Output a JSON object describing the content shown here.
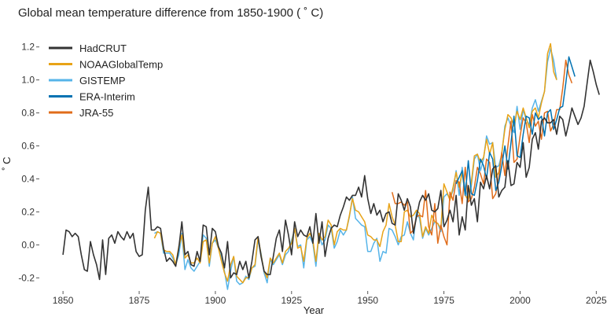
{
  "chart_data": {
    "type": "line",
    "title": "Global mean temperature difference from 1850-1900 ( ˚ C)",
    "xlabel": "Year",
    "ylabel": "˚ C",
    "xlim": [
      1843,
      2028
    ],
    "ylim": [
      -0.27,
      1.27
    ],
    "x_ticks": [
      1850,
      1875,
      1900,
      1925,
      1950,
      1975,
      2000,
      2025
    ],
    "y_ticks": [
      -0.2,
      0.0,
      0.2,
      0.4,
      0.6,
      0.8,
      1.0,
      1.2
    ],
    "x_tick_labels": [
      "1850",
      "1875",
      "1900",
      "1925",
      "1950",
      "1975",
      "2000",
      "2025"
    ],
    "y_tick_labels": [
      "-0.2",
      "0.0",
      "0.2",
      "0.4",
      "0.6",
      "0.8",
      "1.0",
      "1.2"
    ],
    "grid": false,
    "legend_position": "top-left",
    "series": [
      {
        "name": "HadCRUT",
        "color": "#333333",
        "start": 1850,
        "values": [
          -0.06,
          0.09,
          0.08,
          0.05,
          0.07,
          0.05,
          -0.06,
          -0.15,
          -0.16,
          0.02,
          -0.06,
          -0.12,
          -0.21,
          0.03,
          -0.18,
          0.04,
          0.06,
          0.01,
          0.08,
          0.05,
          0.03,
          0.08,
          0.04,
          0.07,
          -0.04,
          -0.07,
          -0.06,
          0.21,
          0.35,
          0.09,
          0.09,
          0.11,
          0.1,
          -0.02,
          -0.1,
          -0.08,
          -0.1,
          -0.13,
          -0.02,
          0.14,
          -0.06,
          -0.04,
          -0.12,
          -0.13,
          -0.04,
          -0.1,
          0.12,
          0.11,
          -0.06,
          0.1,
          0.08,
          -0.01,
          -0.05,
          -0.14,
          0.02,
          -0.2,
          -0.17,
          -0.18,
          -0.1,
          -0.15,
          -0.1,
          -0.2,
          -0.1,
          0.03,
          0.05,
          -0.07,
          -0.16,
          -0.18,
          -0.18,
          -0.07,
          0.04,
          0.09,
          -0.04,
          0.15,
          0.06,
          -0.06,
          0.14,
          0.05,
          0.09,
          0.06,
          0.05,
          0.11,
          0.01,
          0.19,
          0.01,
          0.14,
          -0.07,
          0.04,
          0.1,
          0.12,
          0.11,
          0.18,
          0.23,
          0.29,
          0.27,
          0.3,
          0.3,
          0.35,
          0.29,
          0.42,
          0.28,
          0.19,
          0.25,
          0.18,
          0.21,
          0.14,
          0.19,
          0.2,
          0.13,
          0.12,
          0.31,
          0.27,
          0.21,
          0.28,
          0.23,
          0.07,
          0.17,
          0.26,
          0.3,
          0.27,
          0.31,
          0.21,
          0.2,
          0.22,
          0.33,
          0.11,
          0.15,
          0.21,
          0.14,
          0.3,
          0.06,
          0.17,
          0.09,
          0.36,
          0.24,
          0.28,
          0.14,
          0.38,
          0.34,
          0.42,
          0.34,
          0.46,
          0.48,
          0.29,
          0.33,
          0.35,
          0.51,
          0.36,
          0.37,
          0.5,
          0.47,
          0.62,
          0.41,
          0.47,
          0.64,
          0.68,
          0.58,
          0.75,
          0.77,
          0.74,
          0.74,
          0.76,
          0.67,
          0.78,
          0.76,
          0.66,
          0.74,
          0.83,
          0.78,
          0.73,
          0.77,
          0.84,
          0.98,
          1.12,
          1.05,
          0.97,
          0.91
        ],
        "line_width": 1.6
      },
      {
        "name": "NOAAGlobalTemp",
        "color": "#e8a317",
        "start": 1880,
        "values": [
          0.04,
          0.08,
          0.07,
          -0.03,
          -0.04,
          -0.04,
          -0.06,
          -0.12,
          -0.01,
          0.06,
          -0.08,
          -0.06,
          -0.11,
          -0.11,
          -0.08,
          -0.11,
          0.02,
          0.03,
          -0.11,
          0.01,
          0.05,
          -0.02,
          -0.1,
          -0.17,
          -0.22,
          -0.12,
          -0.07,
          -0.19,
          -0.21,
          -0.23,
          -0.2,
          -0.2,
          -0.14,
          -0.12,
          0.05,
          -0.06,
          -0.16,
          -0.2,
          -0.08,
          -0.11,
          -0.08,
          -0.05,
          -0.11,
          -0.04,
          -0.02,
          0.01,
          0.1,
          -0.02,
          -0.01,
          -0.1,
          0.04,
          0.07,
          0.03,
          -0.1,
          0.07,
          0.03,
          0.05,
          0.15,
          0.12,
          0.0,
          0.08,
          0.1,
          0.09,
          0.09,
          0.18,
          0.28,
          0.21,
          0.2,
          0.17,
          0.14,
          0.06,
          0.05,
          0.03,
          0.03,
          -0.01,
          0.08,
          0.12,
          0.25,
          0.17,
          0.12,
          0.02,
          0.02,
          0.2,
          0.21,
          0.17,
          0.18,
          0.21,
          0.19,
          0.05,
          0.11,
          0.07,
          0.18,
          0.14,
          0.13,
          0.1,
          0.37,
          0.32,
          0.27,
          0.35,
          0.44,
          0.35,
          0.44,
          0.3,
          0.27,
          0.38,
          0.54,
          0.55,
          0.5,
          0.53,
          0.64,
          0.55,
          0.62,
          0.41,
          0.44,
          0.56,
          0.7,
          0.79,
          0.77,
          0.72,
          0.81,
          0.76,
          0.83,
          0.77,
          0.71,
          0.81,
          0.83,
          0.77,
          0.86,
          0.93,
          1.16,
          1.22,
          1.05,
          1.0
        ]
      },
      {
        "name": "GISTEMP",
        "color": "#56b4e9",
        "start": 1880,
        "values": [
          0.07,
          0.08,
          0.07,
          -0.05,
          -0.05,
          -0.05,
          -0.08,
          -0.12,
          -0.06,
          0.07,
          -0.15,
          -0.09,
          -0.14,
          -0.16,
          -0.13,
          -0.1,
          0.06,
          0.04,
          -0.13,
          0.01,
          0.03,
          -0.02,
          -0.07,
          -0.16,
          -0.27,
          -0.16,
          -0.07,
          -0.22,
          -0.24,
          -0.23,
          -0.19,
          -0.21,
          -0.14,
          -0.13,
          0.03,
          -0.05,
          -0.17,
          -0.23,
          -0.09,
          -0.12,
          -0.09,
          -0.06,
          -0.12,
          -0.06,
          -0.04,
          0.03,
          0.09,
          -0.01,
          0.0,
          -0.14,
          0.03,
          0.05,
          0.01,
          -0.13,
          0.06,
          0.0,
          0.03,
          0.12,
          0.1,
          -0.02,
          0.02,
          0.09,
          0.06,
          0.09,
          0.17,
          0.29,
          0.16,
          0.14,
          0.12,
          0.11,
          -0.04,
          -0.04,
          0.01,
          0.04,
          -0.1,
          -0.04,
          -0.05,
          0.1,
          0.09,
          0.05,
          0.0,
          0.05,
          0.06,
          0.14,
          0.07,
          0.03,
          0.2,
          0.16,
          0.04,
          0.1,
          0.06,
          0.1,
          0.14,
          0.13,
          0.08,
          0.29,
          0.31,
          0.28,
          0.33,
          0.45,
          0.3,
          0.47,
          0.34,
          0.27,
          0.36,
          0.52,
          0.55,
          0.45,
          0.52,
          0.66,
          0.61,
          0.62,
          0.47,
          0.48,
          0.55,
          0.72,
          0.77,
          0.72,
          0.68,
          0.84,
          0.7,
          0.82,
          0.76,
          0.73,
          0.83,
          0.88,
          0.81,
          0.87,
          0.93,
          1.11,
          1.19,
          1.12,
          1.0
        ]
      },
      {
        "name": "ERA-Interim",
        "color": "#0072b2",
        "start": 1979,
        "values": [
          0.37,
          0.41,
          0.45,
          0.3,
          0.51,
          0.31,
          0.3,
          0.39,
          0.52,
          0.48,
          0.4,
          0.56,
          0.52,
          0.33,
          0.38,
          0.48,
          0.6,
          0.46,
          0.62,
          0.78,
          0.54,
          0.53,
          0.67,
          0.78,
          0.77,
          0.67,
          0.8,
          0.76,
          0.78,
          0.66,
          0.8,
          0.82,
          0.7,
          0.76,
          0.83,
          0.84,
          0.98,
          1.14,
          1.08,
          1.02
        ]
      },
      {
        "name": "JRA-55",
        "color": "#e06c1a",
        "start": 1958,
        "values": [
          0.32,
          0.25,
          0.25,
          0.26,
          0.24,
          0.26,
          0.07,
          0.09,
          0.17,
          0.18,
          0.17,
          0.33,
          0.11,
          0.06,
          0.25,
          0.01,
          0.12,
          0.05,
          0.0,
          0.32,
          0.27,
          0.39,
          0.38,
          0.25,
          0.47,
          0.26,
          0.28,
          0.35,
          0.47,
          0.43,
          0.37,
          0.52,
          0.5,
          0.28,
          0.31,
          0.41,
          0.56,
          0.42,
          0.6,
          0.75,
          0.5,
          0.52,
          0.66,
          0.77,
          0.74,
          0.62,
          0.79,
          0.72,
          0.75,
          0.64,
          0.8,
          0.81,
          0.69,
          0.73,
          0.82,
          0.82,
          0.95,
          1.12,
          1.03,
          0.98
        ]
      }
    ]
  }
}
